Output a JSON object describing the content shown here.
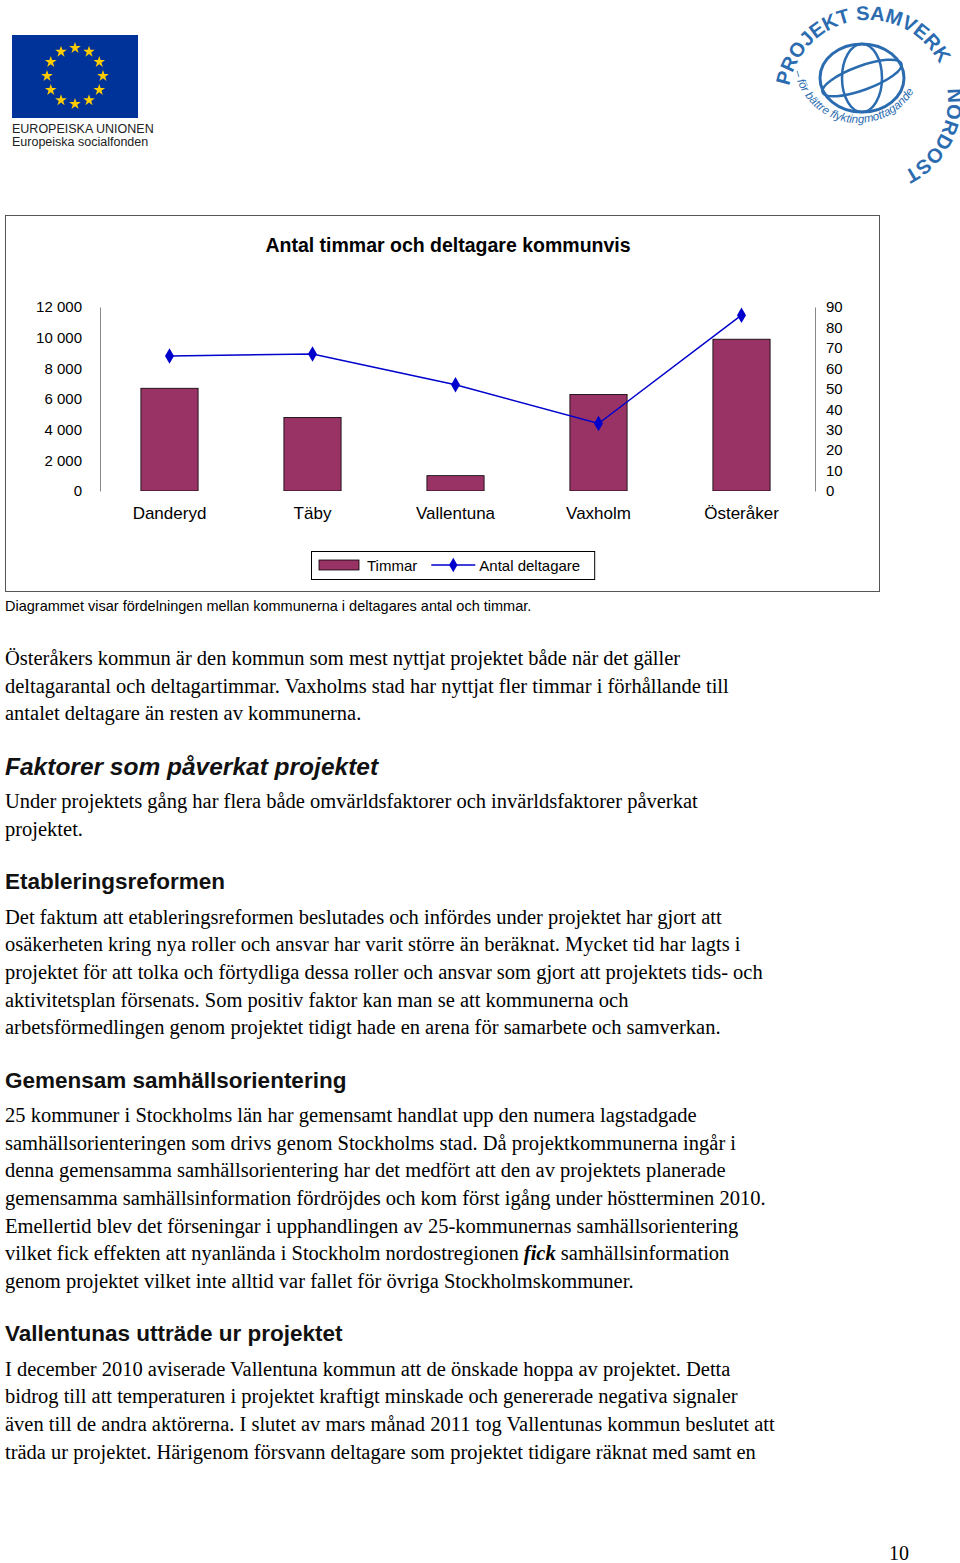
{
  "header": {
    "eu_logo": {
      "line1": "EUROPEISKA UNIONEN",
      "line2": "Europeiska socialfonden"
    },
    "project_logo": {
      "title": "PROJEKT SAMVERK",
      "region": "NORDOST",
      "tagline": "– för bättre flyktingmottagande"
    }
  },
  "chart_data": {
    "type": "bar",
    "title": "Antal timmar och deltagare kommunvis",
    "categories": [
      "Danderyd",
      "Täby",
      "Vallentuna",
      "Vaxholm",
      "Österåker"
    ],
    "series": [
      {
        "name": "Timmar",
        "type": "bar",
        "color": "#993366",
        "values": [
          6700,
          4800,
          1000,
          6300,
          9900
        ]
      },
      {
        "name": "Antal deltagare",
        "type": "line",
        "axis": "y2",
        "color": "#0000cc",
        "marker": "diamond",
        "values": [
          66,
          67,
          52,
          33,
          86
        ]
      }
    ],
    "ylim": [
      0,
      12000
    ],
    "yticks": [
      0,
      {
        "value": 2000,
        "label": "2 000"
      },
      {
        "value": 4000,
        "label": "4 000"
      },
      {
        "value": 6000,
        "label": "6 000"
      },
      {
        "value": 8000,
        "label": "8 000"
      },
      {
        "value": 10000,
        "label": "10 000"
      },
      {
        "value": 12000,
        "label": "12 000"
      }
    ],
    "y2lim": [
      0,
      90
    ],
    "y2ticks": [
      0,
      10,
      20,
      30,
      40,
      50,
      60,
      70,
      80,
      90
    ],
    "legend": "bottom",
    "grid": false
  },
  "caption": "Diagrammet visar fördelningen mellan kommunerna i deltagares antal och timmar.",
  "intro": [
    "Österåkers kommun är den kommun som mest nyttjat projektet både när det gäller",
    "deltagarantal och deltagartimmar. Vaxholms stad har nyttjat fler timmar i förhållande till",
    "antalet deltagare än resten av kommunerna."
  ],
  "sections": [
    {
      "heading": "Faktorer som påverkat projektet",
      "lines": [
        "Under projektets gång har flera både omvärldsfaktorer och invärldsfaktorer påverkat",
        "projektet."
      ]
    },
    {
      "heading": "Etableringsreformen",
      "lines": [
        "Det faktum att etableringsreformen beslutades och infördes under projektet har gjort att",
        "osäkerheten kring nya roller och ansvar har varit större än beräknat. Mycket tid har lagts i",
        "projektet för att tolka och förtydliga dessa roller och ansvar som gjort att projektets tids- och",
        "aktivitetsplan försenats. Som positiv faktor kan man se att kommunerna och",
        "arbetsförmedlingen genom projektet tidigt hade en arena för samarbete och samverkan."
      ]
    },
    {
      "heading": "Gemensam samhällsorientering",
      "lines": [
        "25 kommuner i Stockholms län har gemensamt handlat upp den numera lagstadgade",
        "samhällsorienteringen som drivs genom Stockholms stad. Då projektkommunerna ingår i",
        "denna gemensamma samhällsorientering har det medfört att den av projektets planerade",
        "gemensamma samhällsinformation fördröjdes och kom först igång under höstterminen 2010.",
        "Emellertid blev det förseningar i upphandlingen av 25-kommunernas samhällsorientering",
        [
          {
            "text": "vilket fick effekten att nyanlända i Stockholm nordostregionen "
          },
          {
            "text": "fick",
            "style": "bold-italic"
          },
          {
            "text": " samhällsinformation"
          }
        ],
        "genom projektet vilket inte alltid var fallet för övriga Stockholmskommuner."
      ]
    },
    {
      "heading": "Vallentunas utträde ur projektet",
      "lines": [
        "I december 2010 aviserade Vallentuna kommun att de önskade hoppa av projektet. Detta",
        "bidrog till att temperaturen i projektet kraftigt minskade och genererade negativa signaler",
        "även till de andra aktörerna. I slutet av mars månad 2011 tog Vallentunas kommun beslutet att",
        "träda ur projektet. Härigenom försvann deltagare som projektet tidigare räknat med samt en"
      ]
    }
  ],
  "page_number": "10"
}
